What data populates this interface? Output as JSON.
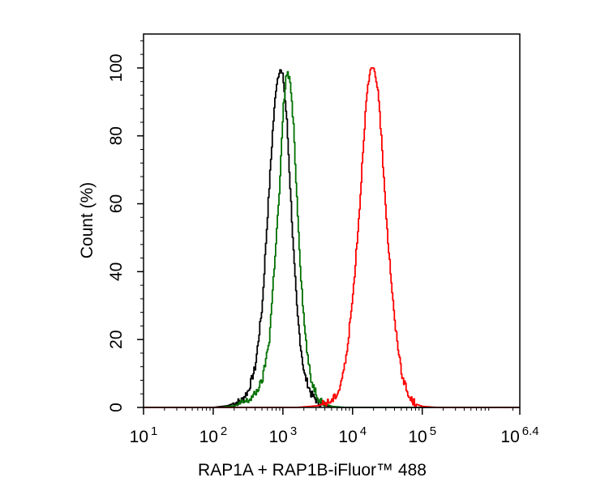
{
  "chart_data": {
    "type": "line",
    "title": "",
    "xlabel": "RAP1A + RAP1B-iFluor™ 488",
    "ylabel": "Count  (%)",
    "xscale": "log",
    "xlim": [
      1,
      6.4
    ],
    "ylim": [
      0,
      110
    ],
    "x_ticks": [
      {
        "base": "10",
        "exp": "1"
      },
      {
        "base": "10",
        "exp": "2"
      },
      {
        "base": "10",
        "exp": "3"
      },
      {
        "base": "10",
        "exp": "4"
      },
      {
        "base": "10",
        "exp": "5"
      },
      {
        "base": "10",
        "exp": "6.4"
      }
    ],
    "y_ticks": [
      "0",
      "20",
      "40",
      "60",
      "80",
      "100"
    ],
    "grid": false,
    "legend": "none",
    "series": [
      {
        "color": "#000000",
        "x": [
          2.0,
          2.2,
          2.4,
          2.5,
          2.6,
          2.7,
          2.75,
          2.8,
          2.85,
          2.9,
          2.95,
          3.0,
          3.05,
          3.1,
          3.15,
          3.2,
          3.25,
          3.3,
          3.4,
          3.5,
          3.6,
          3.8
        ],
        "y": [
          0,
          0.5,
          2,
          5,
          12,
          30,
          48,
          65,
          82,
          95,
          100,
          97,
          85,
          65,
          45,
          28,
          18,
          10,
          4,
          1.5,
          0.5,
          0
        ]
      },
      {
        "color": "#007000",
        "x": [
          2.1,
          2.3,
          2.5,
          2.6,
          2.7,
          2.8,
          2.85,
          2.9,
          2.95,
          3.0,
          3.05,
          3.1,
          3.15,
          3.2,
          3.25,
          3.3,
          3.35,
          3.4,
          3.5,
          3.6,
          3.7,
          3.9
        ],
        "y": [
          0,
          0.5,
          2,
          4,
          8,
          20,
          35,
          50,
          65,
          88,
          99,
          96,
          82,
          60,
          40,
          25,
          15,
          8,
          3,
          1,
          0.3,
          0
        ]
      },
      {
        "color": "#ff0000",
        "x": [
          3.2,
          3.5,
          3.7,
          3.8,
          3.9,
          4.0,
          4.1,
          4.15,
          4.2,
          4.25,
          4.3,
          4.35,
          4.4,
          4.45,
          4.5,
          4.6,
          4.7,
          4.8,
          4.9,
          5.0,
          5.2
        ],
        "y": [
          0,
          0.5,
          2,
          5,
          14,
          33,
          60,
          78,
          92,
          99,
          100,
          95,
          82,
          66,
          50,
          25,
          10,
          3,
          1,
          0.3,
          0
        ]
      }
    ]
  }
}
